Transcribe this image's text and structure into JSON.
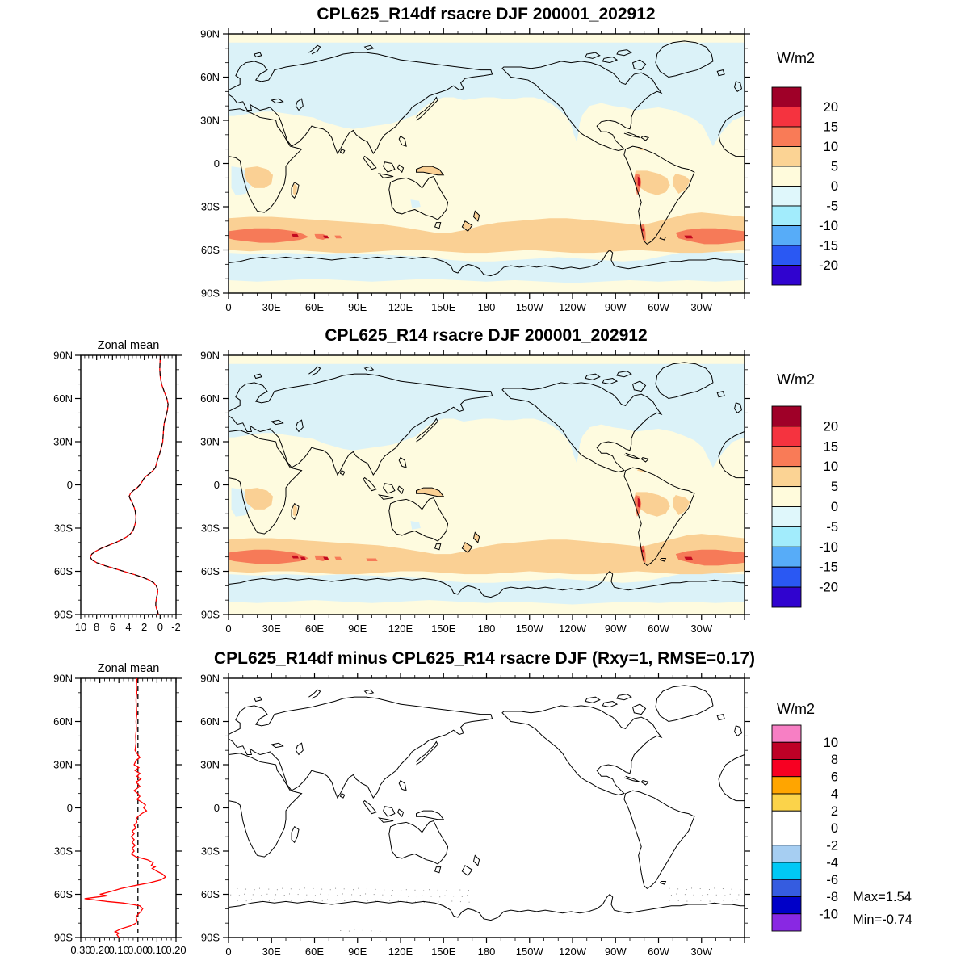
{
  "figure": {
    "background": "#ffffff"
  },
  "panels": [
    {
      "title": "CPL625_R14df rsacre DJF 200001_202912",
      "units": "W/m2",
      "has_zonal": false
    },
    {
      "title": "CPL625_R14 rsacre DJF 200001_202912",
      "units": "W/m2",
      "has_zonal": true,
      "zonal_title": "Zonal mean"
    },
    {
      "title": "CPL625_R14df minus CPL625_R14 rsacre DJF (Rxy=1, RMSE=0.17)",
      "units": "W/m2",
      "has_zonal": true,
      "zonal_title": "Zonal mean",
      "stats": {
        "max_label": "Max=1.54",
        "min_label": "Min=-0.74"
      }
    }
  ],
  "axes": {
    "lon_labels": [
      "0",
      "30E",
      "60E",
      "90E",
      "120E",
      "150E",
      "180",
      "150W",
      "120W",
      "90W",
      "60W",
      "30W"
    ],
    "lat_labels": [
      "90N",
      "60N",
      "30N",
      "0",
      "30S",
      "60S",
      "90S"
    ]
  },
  "chart_data": [
    {
      "type": "heatmap",
      "panel": "top",
      "title": "CPL625_R14df rsacre DJF 200001_202912",
      "units": "W/m2",
      "lon_range": [
        0,
        360
      ],
      "lat_range": [
        -90,
        90
      ],
      "levels": [
        20,
        15,
        10,
        5,
        0,
        -5,
        -10,
        -15,
        -20
      ],
      "palette_top_to_bottom": [
        "#9F0028",
        "#F5333F",
        "#F97B57",
        "#FBD394",
        "#FFFBDC",
        "#DFF7FB",
        "#A2ECFC",
        "#57ACF8",
        "#2A58F3",
        "#3003CF"
      ],
      "map_colors": {
        "cream": "#FEFBDF",
        "pale_blue": "#DBF2F8",
        "orange": "#FAD094",
        "salmon": "#F67A58",
        "dark_red": "#C30A20"
      },
      "description": "Shortwave cloud radiative effect DJF mean: cream (0..5) tropics/midlatitude oceans, pale blue (0..-5) poleward of ~35N and 66S-80S, orange band (5..10) 38S-62S, salmon (10..15) patches 45-55S near 0-75E and 45W-0, dark red (>15) spots ~48E,68E,40W; orange over central Africa, Andes (red streak), E Brazil, New Guinea, New Zealand"
    },
    {
      "type": "heatmap",
      "panel": "middle",
      "title": "CPL625_R14 rsacre DJF 200001_202912",
      "units": "W/m2",
      "lon_range": [
        0,
        360
      ],
      "lat_range": [
        -90,
        90
      ],
      "levels": [
        20,
        15,
        10,
        5,
        0,
        -5,
        -10,
        -15,
        -20
      ],
      "palette_top_to_bottom": [
        "#9F0028",
        "#F5333F",
        "#F97B57",
        "#FBD394",
        "#FFFBDC",
        "#DFF7FB",
        "#A2ECFC",
        "#57ACF8",
        "#2A58F3",
        "#3003CF"
      ],
      "description": "Nearly identical field to top panel; slightly wider salmon band in S. Indian Ocean"
    },
    {
      "type": "line",
      "panel": "middle-left",
      "title": "Zonal mean",
      "xlim_left_to_right": [
        10,
        -2
      ],
      "xticks": [
        10,
        8,
        6,
        4,
        2,
        0,
        -2
      ],
      "ylim": [
        -90,
        90
      ],
      "ytick_labels": [
        "90N",
        "60N",
        "30N",
        "0",
        "30S",
        "60S",
        "90S"
      ],
      "series": [
        {
          "name": "CPL625_R14df",
          "color": "#FF0000",
          "style": "solid"
        },
        {
          "name": "CPL625_R14",
          "color": "#000000",
          "style": "dashed"
        }
      ],
      "points_lat_value": [
        [
          90,
          -0.05
        ],
        [
          85,
          0.02
        ],
        [
          80,
          0.05
        ],
        [
          75,
          -0.02
        ],
        [
          70,
          -0.18
        ],
        [
          65,
          -0.5
        ],
        [
          60,
          -0.85
        ],
        [
          56,
          -1.0
        ],
        [
          52,
          -0.92
        ],
        [
          48,
          -0.75
        ],
        [
          44,
          -0.55
        ],
        [
          40,
          -0.45
        ],
        [
          36,
          -0.4
        ],
        [
          32,
          -0.35
        ],
        [
          30,
          -0.33
        ],
        [
          27,
          -0.2
        ],
        [
          24,
          -0.05
        ],
        [
          21,
          0.1
        ],
        [
          18,
          0.3
        ],
        [
          15,
          0.45
        ],
        [
          12,
          0.6
        ],
        [
          10,
          0.9
        ],
        [
          8,
          1.3
        ],
        [
          6,
          1.8
        ],
        [
          4,
          2.1
        ],
        [
          2,
          2.3
        ],
        [
          0,
          2.55
        ],
        [
          -2,
          2.9
        ],
        [
          -4,
          3.4
        ],
        [
          -6,
          3.75
        ],
        [
          -8,
          3.9
        ],
        [
          -10,
          3.75
        ],
        [
          -12,
          3.55
        ],
        [
          -14,
          3.4
        ],
        [
          -16,
          3.25
        ],
        [
          -18,
          3.15
        ],
        [
          -20,
          3.1
        ],
        [
          -22,
          3.05
        ],
        [
          -24,
          3.05
        ],
        [
          -26,
          3.1
        ],
        [
          -28,
          3.2
        ],
        [
          -30,
          3.3
        ],
        [
          -32,
          3.45
        ],
        [
          -34,
          3.75
        ],
        [
          -36,
          4.2
        ],
        [
          -38,
          4.8
        ],
        [
          -40,
          5.6
        ],
        [
          -42,
          6.5
        ],
        [
          -44,
          7.4
        ],
        [
          -46,
          8.1
        ],
        [
          -48,
          8.6
        ],
        [
          -50,
          8.8
        ],
        [
          -52,
          8.6
        ],
        [
          -54,
          8.0
        ],
        [
          -56,
          7.0
        ],
        [
          -58,
          5.8
        ],
        [
          -60,
          4.6
        ],
        [
          -62,
          3.4
        ],
        [
          -64,
          2.3
        ],
        [
          -66,
          1.4
        ],
        [
          -68,
          0.8
        ],
        [
          -70,
          0.5
        ],
        [
          -72,
          0.35
        ],
        [
          -74,
          0.3
        ],
        [
          -76,
          0.35
        ],
        [
          -78,
          0.45
        ],
        [
          -80,
          0.5
        ],
        [
          -82,
          0.55
        ],
        [
          -84,
          0.55
        ],
        [
          -86,
          0.45
        ],
        [
          -88,
          0.3
        ],
        [
          -90,
          0.25
        ]
      ]
    },
    {
      "type": "heatmap",
      "panel": "bottom",
      "title": "CPL625_R14df minus CPL625_R14 rsacre DJF (Rxy=1, RMSE=0.17)",
      "units": "W/m2",
      "rxy": 1,
      "rmse": 0.17,
      "max": 1.54,
      "min": -0.74,
      "levels": [
        10,
        8,
        6,
        4,
        2,
        0,
        -2,
        -4,
        -6,
        -8,
        -10
      ],
      "palette_top_to_bottom": [
        "#F77FC4",
        "#BE0026",
        "#F70022",
        "#FFA500",
        "#FBD34A",
        "#FFFFFF",
        "#FFFFFF",
        "#A6CEF2",
        "#00C8F6",
        "#355CE0",
        "#0000C8",
        "#8928E3"
      ],
      "description": "Difference map ~0 everywhere (white, only coastlines); faint gray stippling 57S-66S near 0-170E and 50W-0, few specks near 86-88S"
    },
    {
      "type": "line",
      "panel": "bottom-left",
      "title": "Zonal mean",
      "xlim_left_to_right": [
        0.3,
        -0.2
      ],
      "xtick_labels_as_shown": [
        "0.30",
        "0.20",
        "0.10",
        "0.00",
        "0.10",
        "0.20"
      ],
      "xtick_values": [
        0.3,
        0.2,
        0.1,
        0.0,
        -0.1,
        -0.2
      ],
      "zero_line": "dashed-black",
      "ylim": [
        -90,
        90
      ],
      "ytick_labels": [
        "90N",
        "60N",
        "30N",
        "0",
        "30S",
        "60S",
        "90S"
      ],
      "series": [
        {
          "name": "difference",
          "color": "#FF0000",
          "style": "solid"
        }
      ],
      "points_lat_value": [
        [
          90,
          0.005
        ],
        [
          85,
          0.008
        ],
        [
          80,
          0.006
        ],
        [
          75,
          0.01
        ],
        [
          70,
          0.008
        ],
        [
          65,
          0.006
        ],
        [
          60,
          0.01
        ],
        [
          55,
          0.008
        ],
        [
          50,
          0.012
        ],
        [
          45,
          0.01
        ],
        [
          40,
          0.015
        ],
        [
          37,
          0.0
        ],
        [
          35,
          -0.01
        ],
        [
          33,
          0.01
        ],
        [
          30,
          0.02
        ],
        [
          28,
          -0.005
        ],
        [
          26,
          0.015
        ],
        [
          24,
          -0.01
        ],
        [
          22,
          0.005
        ],
        [
          20,
          -0.015
        ],
        [
          18,
          0.01
        ],
        [
          15,
          -0.01
        ],
        [
          12,
          0.02
        ],
        [
          10,
          0.0
        ],
        [
          8,
          -0.01
        ],
        [
          6,
          0.005
        ],
        [
          4,
          -0.02
        ],
        [
          2,
          -0.04
        ],
        [
          0,
          -0.03
        ],
        [
          -2,
          -0.045
        ],
        [
          -4,
          -0.02
        ],
        [
          -6,
          0.0
        ],
        [
          -8,
          0.01
        ],
        [
          -10,
          0.005
        ],
        [
          -12,
          0.02
        ],
        [
          -14,
          0.01
        ],
        [
          -16,
          0.03
        ],
        [
          -18,
          0.02
        ],
        [
          -20,
          0.035
        ],
        [
          -22,
          0.02
        ],
        [
          -24,
          0.03
        ],
        [
          -26,
          0.015
        ],
        [
          -28,
          0.03
        ],
        [
          -30,
          0.02
        ],
        [
          -32,
          0.035
        ],
        [
          -34,
          0.01
        ],
        [
          -35,
          -0.02
        ],
        [
          -36,
          -0.05
        ],
        [
          -38,
          -0.08
        ],
        [
          -40,
          -0.07
        ],
        [
          -41,
          -0.09
        ],
        [
          -42,
          -0.075
        ],
        [
          -44,
          -0.1
        ],
        [
          -46,
          -0.13
        ],
        [
          -48,
          -0.145
        ],
        [
          -50,
          -0.12
        ],
        [
          -52,
          -0.06
        ],
        [
          -54,
          0.02
        ],
        [
          -56,
          0.09
        ],
        [
          -58,
          0.14
        ],
        [
          -59,
          0.17
        ],
        [
          -60,
          0.2
        ],
        [
          -61,
          0.16
        ],
        [
          -62,
          0.22
        ],
        [
          -63,
          0.28
        ],
        [
          -64,
          0.22
        ],
        [
          -65,
          0.16
        ],
        [
          -66,
          0.08
        ],
        [
          -67,
          0.03
        ],
        [
          -68,
          -0.01
        ],
        [
          -70,
          -0.025
        ],
        [
          -72,
          -0.015
        ],
        [
          -74,
          0.0
        ],
        [
          -76,
          0.01
        ],
        [
          -78,
          0.005
        ],
        [
          -80,
          0.01
        ],
        [
          -82,
          0.04
        ],
        [
          -84,
          0.09
        ],
        [
          -86,
          0.12
        ],
        [
          -87,
          0.1
        ],
        [
          -88,
          0.11
        ],
        [
          -90,
          0.1
        ]
      ]
    }
  ]
}
